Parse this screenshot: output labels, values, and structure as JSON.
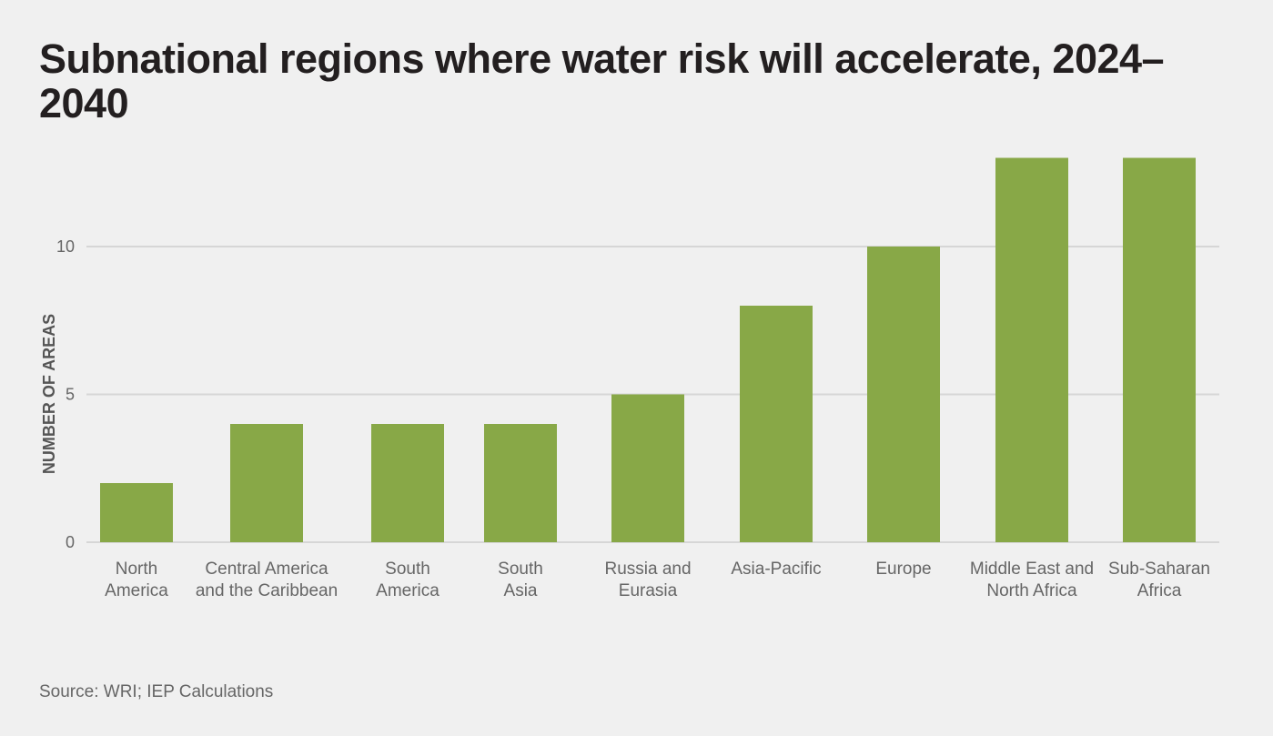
{
  "chart_data": {
    "type": "bar",
    "title": "Subnational regions where water risk will accelerate, 2024–2040",
    "xlabel": "",
    "ylabel": "NUMBER OF AREAS",
    "categories": [
      [
        "North",
        "America"
      ],
      [
        "Central America",
        "and the Caribbean"
      ],
      [
        "South",
        "America"
      ],
      [
        "South",
        "Asia"
      ],
      [
        "Russia and",
        "Eurasia"
      ],
      [
        "Asia-Pacific"
      ],
      [
        "Europe"
      ],
      [
        "Middle East and",
        "North Africa"
      ],
      [
        "Sub-Saharan",
        "Africa"
      ]
    ],
    "values": [
      2,
      4,
      4,
      4,
      5,
      8,
      10,
      13,
      13
    ],
    "yticks": [
      0,
      5,
      10
    ],
    "ylim": [
      0,
      13
    ],
    "grid": true,
    "bar_color": "#88a847",
    "grid_color": "#d6d6d6",
    "source": "Source: WRI; IEP Calculations"
  }
}
